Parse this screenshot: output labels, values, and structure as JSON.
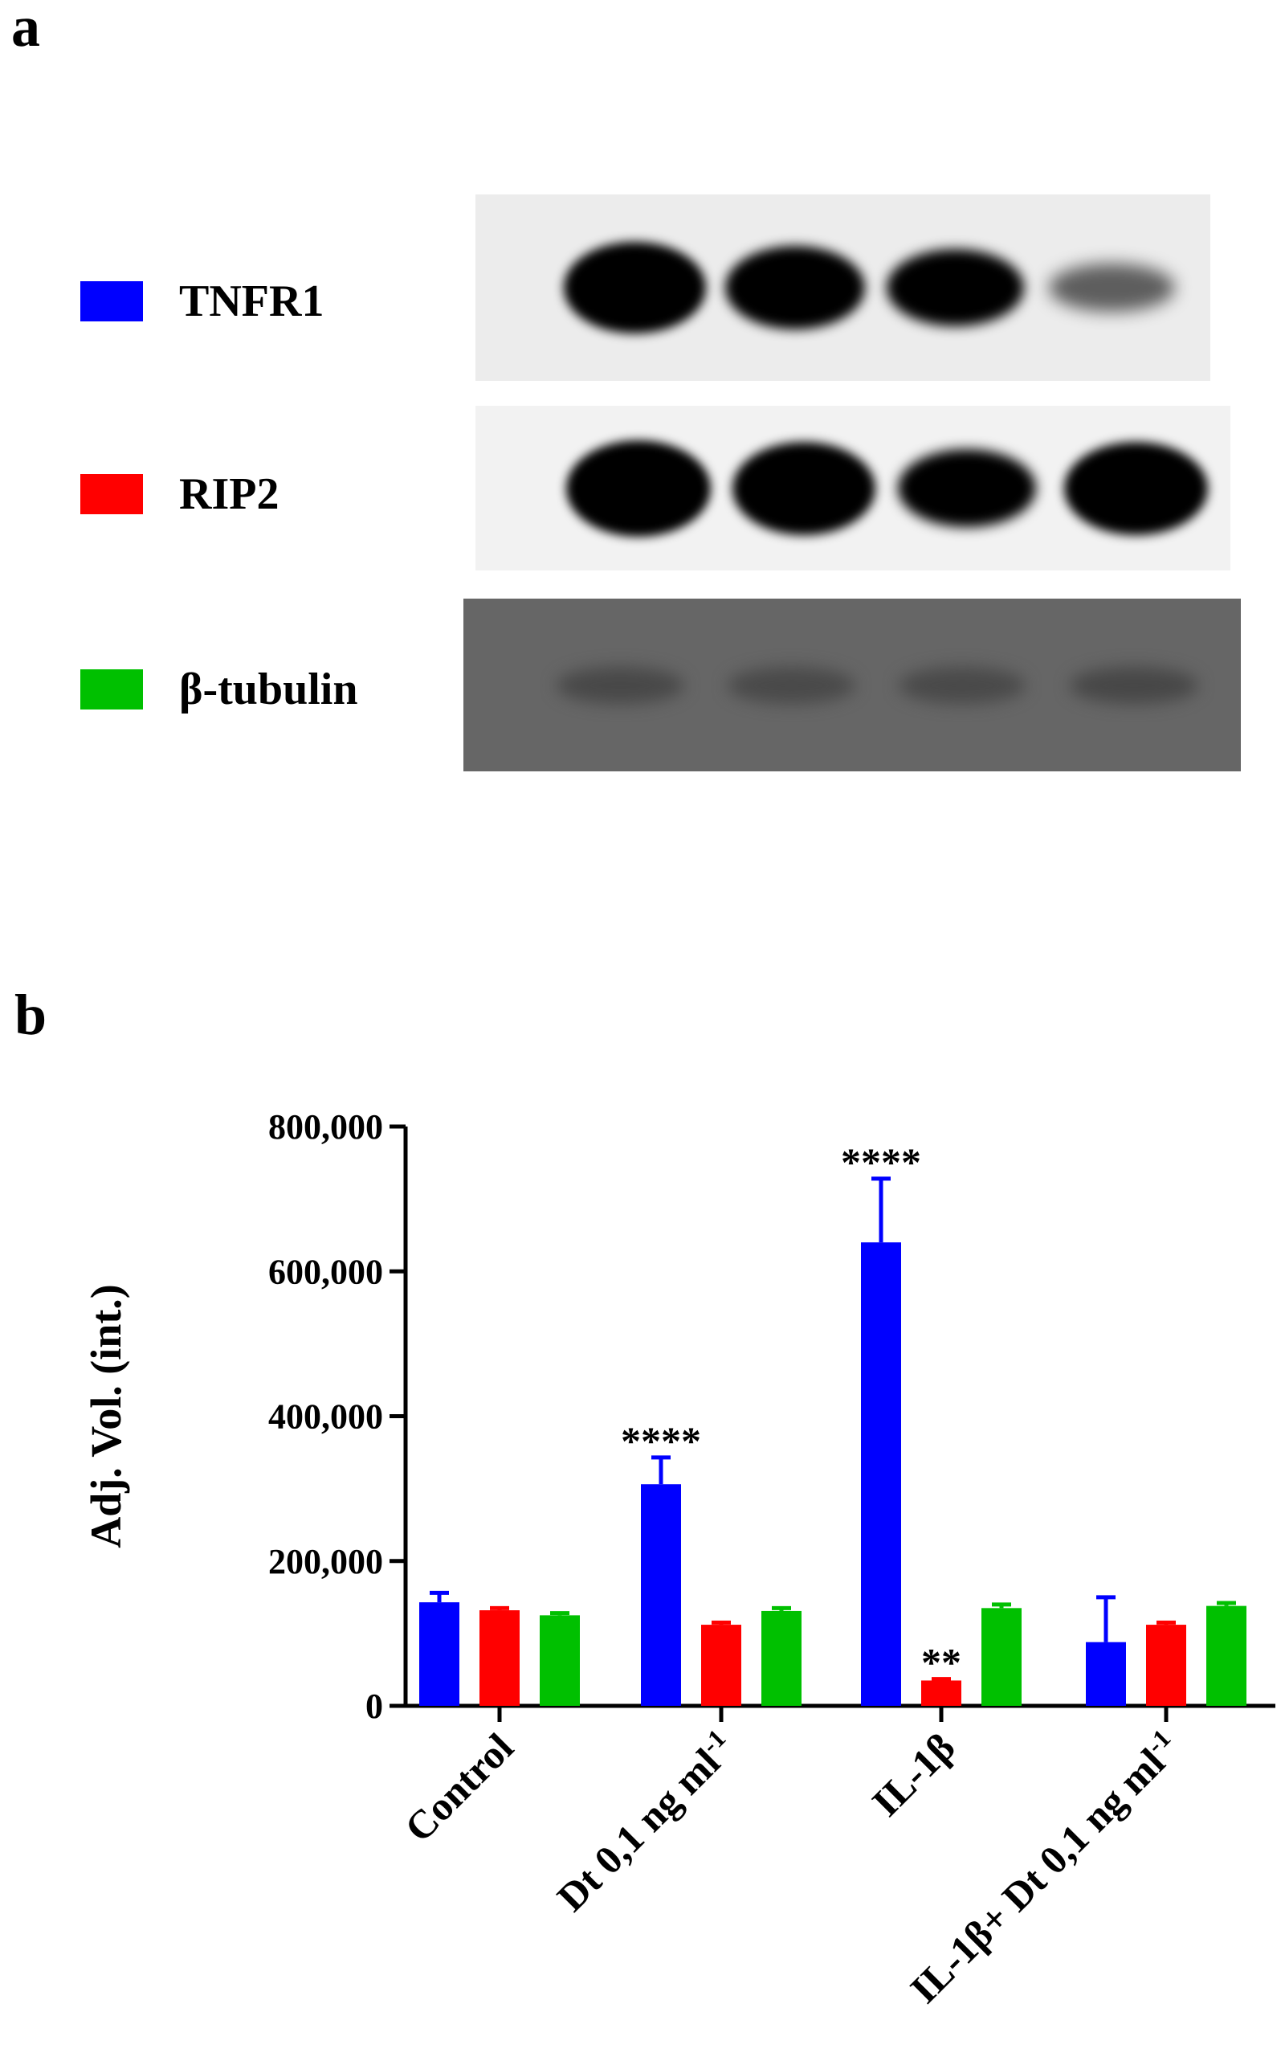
{
  "panels": {
    "a": "a",
    "b": "b"
  },
  "legend": [
    {
      "name": "TNFR1",
      "color": "#0000ff"
    },
    {
      "name": "RIP2",
      "color": "#ff0000"
    },
    {
      "name": "β-tubulin",
      "color": "#00c000"
    }
  ],
  "blots": [
    {
      "name": "TNFR1",
      "background": "#ececec",
      "bands": [
        0.92,
        0.8,
        0.7,
        0.25
      ]
    },
    {
      "name": "RIP2",
      "background": "#f2f2f2",
      "bands": [
        1.0,
        0.95,
        0.72,
        0.95
      ]
    },
    {
      "name": "β-tubulin",
      "background": "#666666",
      "bands": [
        0.3,
        0.28,
        0.28,
        0.32
      ]
    }
  ],
  "chart_data": {
    "type": "bar",
    "ylabel": "Adj. Vol. (int.)",
    "ylim": [
      0,
      800000
    ],
    "yticks": [
      0,
      200000,
      400000,
      600000,
      800000
    ],
    "ytick_labels": [
      "0",
      "200,000",
      "400,000",
      "600,000",
      "800,000"
    ],
    "categories": [
      "Control",
      "Dt 0,1 ng ml",
      "IL-1β",
      "IL-1β+ Dt 0,1 ng ml"
    ],
    "category_superscripts": [
      "",
      "-1",
      "",
      "-1"
    ],
    "series": [
      {
        "name": "TNFR1",
        "color": "#0000ff",
        "values": [
          143000,
          306000,
          640000,
          88000
        ],
        "errors": [
          13000,
          37000,
          88000,
          62000
        ],
        "significance": [
          "",
          "****",
          "****",
          ""
        ]
      },
      {
        "name": "RIP2",
        "color": "#ff0000",
        "values": [
          132000,
          112000,
          35000,
          112000
        ],
        "errors": [
          3000,
          3000,
          2000,
          3000
        ],
        "significance": [
          "",
          "",
          "**",
          ""
        ]
      },
      {
        "name": "β-tubulin",
        "color": "#00c000",
        "values": [
          125000,
          131000,
          135000,
          138000
        ],
        "errors": [
          3000,
          4000,
          5000,
          4000
        ],
        "significance": [
          "",
          "",
          "",
          ""
        ]
      }
    ]
  }
}
